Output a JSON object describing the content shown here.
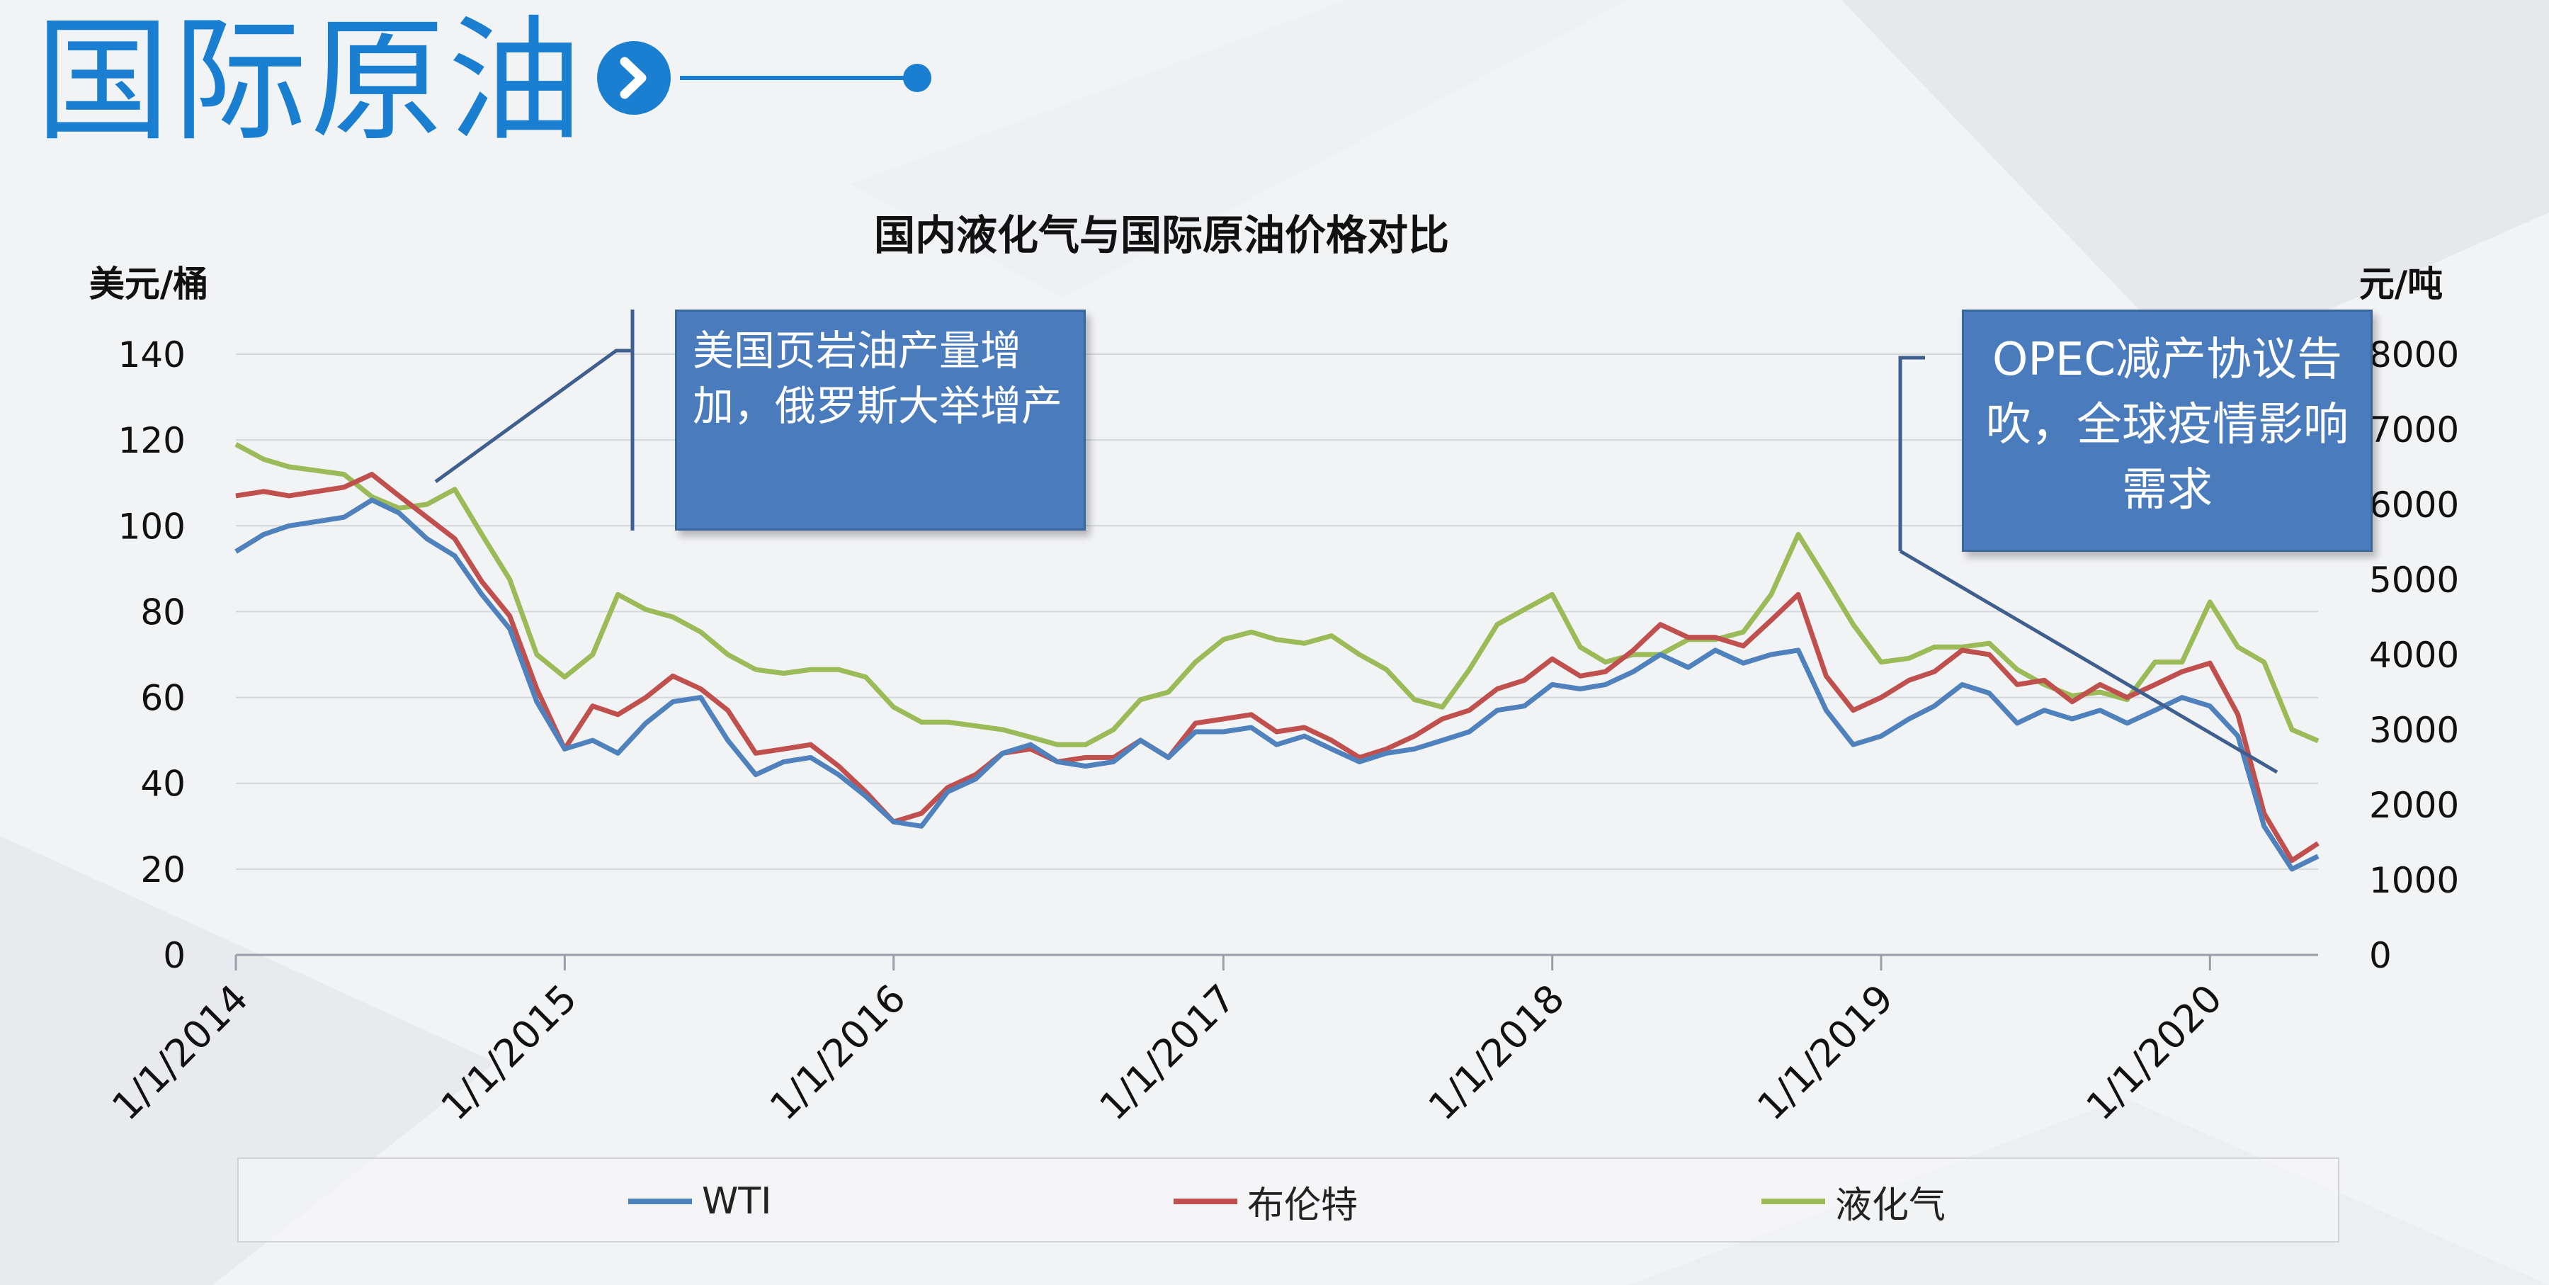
{
  "slide": {
    "title": "国际原油"
  },
  "callouts": {
    "left": "美国页岩油产量增加，俄罗斯大举增产",
    "right": "OPEC减产协议告吹，全球疫情影响需求"
  },
  "colors": {
    "accent": "#1b7fd1",
    "wti": "#4f81bd",
    "brent": "#c0504d",
    "lpg": "#9bbb59",
    "callout_bg": "#4a7bbd"
  },
  "chart_data": {
    "type": "line",
    "title": "国内液化气与国际原油价格对比",
    "ylabel_left": "美元/桶",
    "ylabel_right": "元/吨",
    "ylim_left": [
      0,
      140
    ],
    "ylim_right": [
      0,
      8000
    ],
    "yticks_left": [
      "0",
      "20",
      "40",
      "60",
      "80",
      "100",
      "120",
      "140"
    ],
    "yticks_right": [
      "0",
      "1000",
      "2000",
      "3000",
      "4000",
      "5000",
      "6000",
      "7000",
      "8000"
    ],
    "xlim": [
      "2014-01-01",
      "2020-04-30"
    ],
    "xticks": [
      "1/1/2014",
      "1/1/2015",
      "1/1/2016",
      "1/1/2017",
      "1/1/2018",
      "1/1/2019",
      "1/1/2020"
    ],
    "grid": true,
    "legend": "bottom",
    "series": [
      {
        "name": "WTI",
        "axis": "left",
        "points": [
          [
            "2014-01-01",
            94
          ],
          [
            "2014-02-01",
            98
          ],
          [
            "2014-03-01",
            100
          ],
          [
            "2014-04-01",
            101
          ],
          [
            "2014-05-01",
            102
          ],
          [
            "2014-06-01",
            106
          ],
          [
            "2014-07-01",
            103
          ],
          [
            "2014-08-01",
            97
          ],
          [
            "2014-09-01",
            93
          ],
          [
            "2014-10-01",
            84
          ],
          [
            "2014-11-01",
            76
          ],
          [
            "2014-12-01",
            59
          ],
          [
            "2015-01-01",
            48
          ],
          [
            "2015-02-01",
            50
          ],
          [
            "2015-03-01",
            47
          ],
          [
            "2015-04-01",
            54
          ],
          [
            "2015-05-01",
            59
          ],
          [
            "2015-06-01",
            60
          ],
          [
            "2015-07-01",
            50
          ],
          [
            "2015-08-01",
            42
          ],
          [
            "2015-09-01",
            45
          ],
          [
            "2015-10-01",
            46
          ],
          [
            "2015-11-01",
            42
          ],
          [
            "2015-12-01",
            37
          ],
          [
            "2016-01-01",
            31
          ],
          [
            "2016-02-01",
            30
          ],
          [
            "2016-03-01",
            38
          ],
          [
            "2016-04-01",
            41
          ],
          [
            "2016-05-01",
            47
          ],
          [
            "2016-06-01",
            49
          ],
          [
            "2016-07-01",
            45
          ],
          [
            "2016-08-01",
            44
          ],
          [
            "2016-09-01",
            45
          ],
          [
            "2016-10-01",
            50
          ],
          [
            "2016-11-01",
            46
          ],
          [
            "2016-12-01",
            52
          ],
          [
            "2017-01-01",
            52
          ],
          [
            "2017-02-01",
            53
          ],
          [
            "2017-03-01",
            49
          ],
          [
            "2017-04-01",
            51
          ],
          [
            "2017-05-01",
            48
          ],
          [
            "2017-06-01",
            45
          ],
          [
            "2017-07-01",
            47
          ],
          [
            "2017-08-01",
            48
          ],
          [
            "2017-09-01",
            50
          ],
          [
            "2017-10-01",
            52
          ],
          [
            "2017-11-01",
            57
          ],
          [
            "2017-12-01",
            58
          ],
          [
            "2018-01-01",
            63
          ],
          [
            "2018-02-01",
            62
          ],
          [
            "2018-03-01",
            63
          ],
          [
            "2018-04-01",
            66
          ],
          [
            "2018-05-01",
            70
          ],
          [
            "2018-06-01",
            67
          ],
          [
            "2018-07-01",
            71
          ],
          [
            "2018-08-01",
            68
          ],
          [
            "2018-09-01",
            70
          ],
          [
            "2018-10-01",
            71
          ],
          [
            "2018-11-01",
            57
          ],
          [
            "2018-12-01",
            49
          ],
          [
            "2019-01-01",
            51
          ],
          [
            "2019-02-01",
            55
          ],
          [
            "2019-03-01",
            58
          ],
          [
            "2019-04-01",
            63
          ],
          [
            "2019-05-01",
            61
          ],
          [
            "2019-06-01",
            54
          ],
          [
            "2019-07-01",
            57
          ],
          [
            "2019-08-01",
            55
          ],
          [
            "2019-09-01",
            57
          ],
          [
            "2019-10-01",
            54
          ],
          [
            "2019-11-01",
            57
          ],
          [
            "2019-12-01",
            60
          ],
          [
            "2020-01-01",
            58
          ],
          [
            "2020-02-01",
            51
          ],
          [
            "2020-03-01",
            30
          ],
          [
            "2020-04-01",
            20
          ],
          [
            "2020-04-30",
            23
          ]
        ]
      },
      {
        "name": "布伦特",
        "axis": "left",
        "points": [
          [
            "2014-01-01",
            107
          ],
          [
            "2014-02-01",
            108
          ],
          [
            "2014-03-01",
            107
          ],
          [
            "2014-04-01",
            108
          ],
          [
            "2014-05-01",
            109
          ],
          [
            "2014-06-01",
            112
          ],
          [
            "2014-07-01",
            107
          ],
          [
            "2014-08-01",
            102
          ],
          [
            "2014-09-01",
            97
          ],
          [
            "2014-10-01",
            87
          ],
          [
            "2014-11-01",
            79
          ],
          [
            "2014-12-01",
            62
          ],
          [
            "2015-01-01",
            48
          ],
          [
            "2015-02-01",
            58
          ],
          [
            "2015-03-01",
            56
          ],
          [
            "2015-04-01",
            60
          ],
          [
            "2015-05-01",
            65
          ],
          [
            "2015-06-01",
            62
          ],
          [
            "2015-07-01",
            57
          ],
          [
            "2015-08-01",
            47
          ],
          [
            "2015-09-01",
            48
          ],
          [
            "2015-10-01",
            49
          ],
          [
            "2015-11-01",
            44
          ],
          [
            "2015-12-01",
            38
          ],
          [
            "2016-01-01",
            31
          ],
          [
            "2016-02-01",
            33
          ],
          [
            "2016-03-01",
            39
          ],
          [
            "2016-04-01",
            42
          ],
          [
            "2016-05-01",
            47
          ],
          [
            "2016-06-01",
            48
          ],
          [
            "2016-07-01",
            45
          ],
          [
            "2016-08-01",
            46
          ],
          [
            "2016-09-01",
            46
          ],
          [
            "2016-10-01",
            50
          ],
          [
            "2016-11-01",
            46
          ],
          [
            "2016-12-01",
            54
          ],
          [
            "2017-01-01",
            55
          ],
          [
            "2017-02-01",
            56
          ],
          [
            "2017-03-01",
            52
          ],
          [
            "2017-04-01",
            53
          ],
          [
            "2017-05-01",
            50
          ],
          [
            "2017-06-01",
            46
          ],
          [
            "2017-07-01",
            48
          ],
          [
            "2017-08-01",
            51
          ],
          [
            "2017-09-01",
            55
          ],
          [
            "2017-10-01",
            57
          ],
          [
            "2017-11-01",
            62
          ],
          [
            "2017-12-01",
            64
          ],
          [
            "2018-01-01",
            69
          ],
          [
            "2018-02-01",
            65
          ],
          [
            "2018-03-01",
            66
          ],
          [
            "2018-04-01",
            71
          ],
          [
            "2018-05-01",
            77
          ],
          [
            "2018-06-01",
            74
          ],
          [
            "2018-07-01",
            74
          ],
          [
            "2018-08-01",
            72
          ],
          [
            "2018-09-01",
            78
          ],
          [
            "2018-10-01",
            84
          ],
          [
            "2018-11-01",
            65
          ],
          [
            "2018-12-01",
            57
          ],
          [
            "2019-01-01",
            60
          ],
          [
            "2019-02-01",
            64
          ],
          [
            "2019-03-01",
            66
          ],
          [
            "2019-04-01",
            71
          ],
          [
            "2019-05-01",
            70
          ],
          [
            "2019-06-01",
            63
          ],
          [
            "2019-07-01",
            64
          ],
          [
            "2019-08-01",
            59
          ],
          [
            "2019-09-01",
            63
          ],
          [
            "2019-10-01",
            60
          ],
          [
            "2019-11-01",
            63
          ],
          [
            "2019-12-01",
            66
          ],
          [
            "2020-01-01",
            68
          ],
          [
            "2020-02-01",
            56
          ],
          [
            "2020-03-01",
            33
          ],
          [
            "2020-04-01",
            22
          ],
          [
            "2020-04-30",
            26
          ]
        ]
      },
      {
        "name": "液化气",
        "axis": "right",
        "points": [
          [
            "2014-01-01",
            6800
          ],
          [
            "2014-02-01",
            6600
          ],
          [
            "2014-03-01",
            6500
          ],
          [
            "2014-04-01",
            6450
          ],
          [
            "2014-05-01",
            6400
          ],
          [
            "2014-06-01",
            6100
          ],
          [
            "2014-07-01",
            5950
          ],
          [
            "2014-08-01",
            6000
          ],
          [
            "2014-09-01",
            6200
          ],
          [
            "2014-10-01",
            5600
          ],
          [
            "2014-11-01",
            5000
          ],
          [
            "2014-12-01",
            4000
          ],
          [
            "2015-01-01",
            3700
          ],
          [
            "2015-02-01",
            4000
          ],
          [
            "2015-03-01",
            4800
          ],
          [
            "2015-04-01",
            4600
          ],
          [
            "2015-05-01",
            4500
          ],
          [
            "2015-06-01",
            4300
          ],
          [
            "2015-07-01",
            4000
          ],
          [
            "2015-08-01",
            3800
          ],
          [
            "2015-09-01",
            3750
          ],
          [
            "2015-10-01",
            3800
          ],
          [
            "2015-11-01",
            3800
          ],
          [
            "2015-12-01",
            3700
          ],
          [
            "2016-01-01",
            3300
          ],
          [
            "2016-02-01",
            3100
          ],
          [
            "2016-03-01",
            3100
          ],
          [
            "2016-04-01",
            3050
          ],
          [
            "2016-05-01",
            3000
          ],
          [
            "2016-06-01",
            2900
          ],
          [
            "2016-07-01",
            2800
          ],
          [
            "2016-08-01",
            2800
          ],
          [
            "2016-09-01",
            3000
          ],
          [
            "2016-10-01",
            3400
          ],
          [
            "2016-11-01",
            3500
          ],
          [
            "2016-12-01",
            3900
          ],
          [
            "2017-01-01",
            4200
          ],
          [
            "2017-02-01",
            4300
          ],
          [
            "2017-03-01",
            4200
          ],
          [
            "2017-04-01",
            4150
          ],
          [
            "2017-05-01",
            4250
          ],
          [
            "2017-06-01",
            4000
          ],
          [
            "2017-07-01",
            3800
          ],
          [
            "2017-08-01",
            3400
          ],
          [
            "2017-09-01",
            3300
          ],
          [
            "2017-10-01",
            3800
          ],
          [
            "2017-11-01",
            4400
          ],
          [
            "2017-12-01",
            4600
          ],
          [
            "2018-01-01",
            4800
          ],
          [
            "2018-02-01",
            4100
          ],
          [
            "2018-03-01",
            3900
          ],
          [
            "2018-04-01",
            4000
          ],
          [
            "2018-05-01",
            4000
          ],
          [
            "2018-06-01",
            4200
          ],
          [
            "2018-07-01",
            4200
          ],
          [
            "2018-08-01",
            4300
          ],
          [
            "2018-09-01",
            4800
          ],
          [
            "2018-10-01",
            5600
          ],
          [
            "2018-11-01",
            5000
          ],
          [
            "2018-12-01",
            4400
          ],
          [
            "2019-01-01",
            3900
          ],
          [
            "2019-02-01",
            3950
          ],
          [
            "2019-03-01",
            4100
          ],
          [
            "2019-04-01",
            4100
          ],
          [
            "2019-05-01",
            4150
          ],
          [
            "2019-06-01",
            3800
          ],
          [
            "2019-07-01",
            3600
          ],
          [
            "2019-08-01",
            3450
          ],
          [
            "2019-09-01",
            3500
          ],
          [
            "2019-10-01",
            3400
          ],
          [
            "2019-11-01",
            3900
          ],
          [
            "2019-12-01",
            3900
          ],
          [
            "2020-01-01",
            4700
          ],
          [
            "2020-02-01",
            4100
          ],
          [
            "2020-03-01",
            3900
          ],
          [
            "2020-04-01",
            3000
          ],
          [
            "2020-04-30",
            2850
          ]
        ]
      }
    ]
  }
}
